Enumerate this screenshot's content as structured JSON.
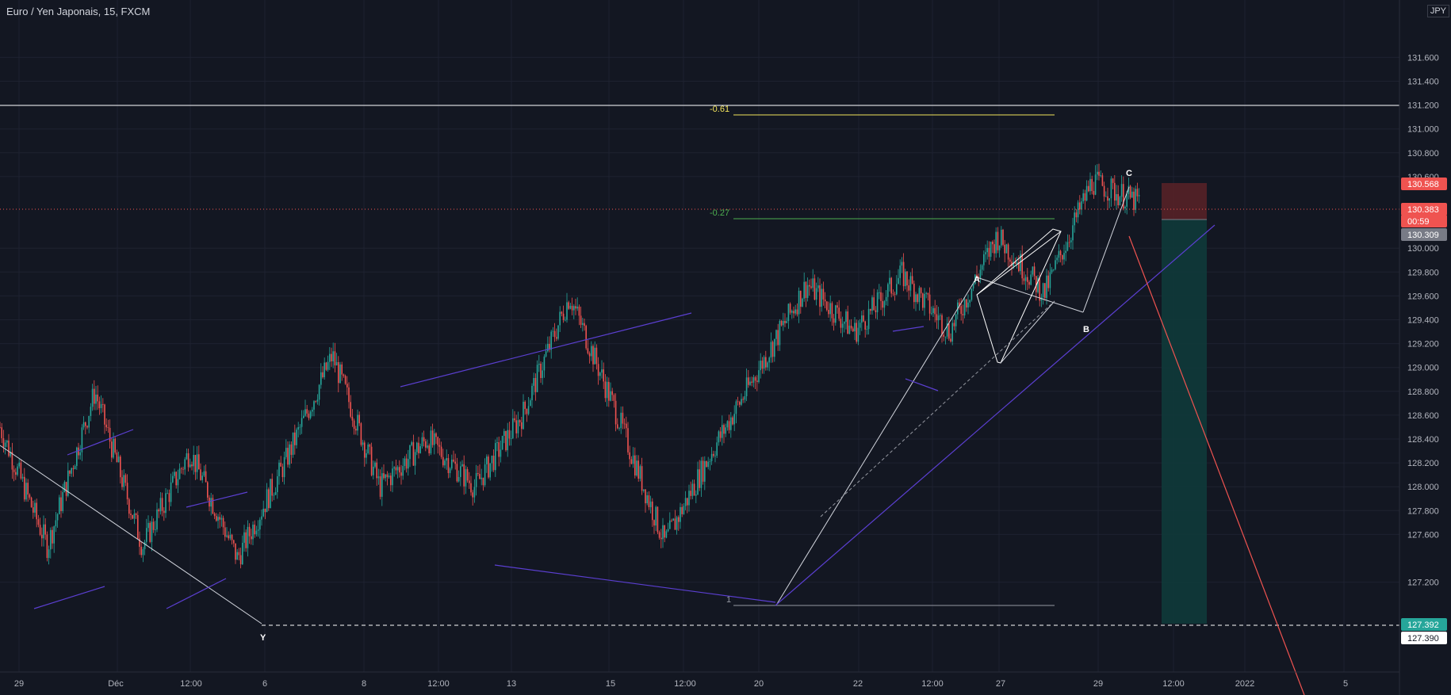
{
  "header": {
    "symbol": "Euro / Yen Japonais, 15, FXCM",
    "currency": "JPY"
  },
  "colors": {
    "background": "#131722",
    "grid": "#1e2230",
    "up": "#26a69a",
    "down": "#ef5350",
    "wave": "#5b3fd1",
    "white_line": "#d1d4dc",
    "fib_061": "#f2e35b",
    "fib_027": "#4caf50",
    "stop_zone": "#5a2227",
    "target_zone": "#0f3a3a"
  },
  "price_axis": {
    "ticks": [
      "131.600",
      "131.400",
      "131.200",
      "131.000",
      "130.800",
      "130.600",
      "130.000",
      "129.800",
      "129.600",
      "129.400",
      "129.200",
      "129.000",
      "128.800",
      "128.600",
      "128.400",
      "128.200",
      "128.000",
      "127.800",
      "127.600",
      "127.200"
    ],
    "tags": [
      {
        "value": "130.568",
        "bg": "#ef5350",
        "fg": "#ffffff"
      },
      {
        "value": "130.383",
        "bg": "#ef5350",
        "fg": "#ffffff"
      },
      {
        "value": "00:59",
        "bg": "#ef5350",
        "fg": "#ffffff"
      },
      {
        "value": "130.309",
        "bg": "#787b86",
        "fg": "#ffffff"
      },
      {
        "value": "127.392",
        "bg": "#26a69a",
        "fg": "#ffffff"
      },
      {
        "value": "127.390",
        "bg": "#ffffff",
        "fg": "#131722"
      }
    ]
  },
  "time_axis": {
    "ticks": [
      "29",
      "Déc",
      "12:00",
      "6",
      "8",
      "12:00",
      "13",
      "15",
      "12:00",
      "20",
      "22",
      "12:00",
      "27",
      "29",
      "12:00",
      "2022",
      "5"
    ]
  },
  "annotations": {
    "fib_061": "-0.61",
    "fib_027": "-0.27",
    "fib_1": "1",
    "wave_Y": "Y",
    "wave_A": "A",
    "wave_B": "B",
    "wave_C": "C"
  },
  "chart_data": {
    "type": "candlestick",
    "title": "Euro / Yen Japonais, 15, FXCM",
    "ylim": [
      127.0,
      131.8
    ],
    "grid": true,
    "key_levels": {
      "horizontal_line": 131.13,
      "fib_-0.61": 131.06,
      "fib_-0.27": 130.3,
      "fib_1": 127.52,
      "current_price": 130.383,
      "stop_loss": 130.568,
      "entry": 130.309,
      "take_profit": 127.392
    },
    "price_path": [
      {
        "t": "25 Nov",
        "price": 128.5
      },
      {
        "t": "29 Nov",
        "price": 127.5
      },
      {
        "t": "30 Nov",
        "price": 128.8
      },
      {
        "t": "2 Dec",
        "price": 127.5
      },
      {
        "t": "3 Dec",
        "price": 128.3
      },
      {
        "t": "6 Dec",
        "price": 127.4
      },
      {
        "t": "8 Dec",
        "price": 128.2
      },
      {
        "t": "9 Dec",
        "price": 129.1
      },
      {
        "t": "13 Dec",
        "price": 128.0
      },
      {
        "t": "14 Dec",
        "price": 128.4
      },
      {
        "t": "15 Dec",
        "price": 128.0
      },
      {
        "t": "16 Dec",
        "price": 128.6
      },
      {
        "t": "17 Dec",
        "price": 129.6
      },
      {
        "t": "17 Dec 18:00",
        "price": 128.6
      },
      {
        "t": "20 Dec",
        "price": 127.53
      },
      {
        "t": "21 Dec",
        "price": 128.3
      },
      {
        "t": "22 Dec",
        "price": 129.0
      },
      {
        "t": "23 Dec",
        "price": 129.7
      },
      {
        "t": "24 Dec",
        "price": 129.3
      },
      {
        "t": "24 Dec 18:00",
        "price": 129.78
      },
      {
        "t": "27 Dec",
        "price": 129.3
      },
      {
        "t": "28 Dec",
        "price": 130.1
      },
      {
        "t": "29 Dec",
        "price": 129.62
      },
      {
        "t": "30 Dec",
        "price": 130.56
      },
      {
        "t": "30 Dec 12:00",
        "price": 130.38
      }
    ]
  }
}
